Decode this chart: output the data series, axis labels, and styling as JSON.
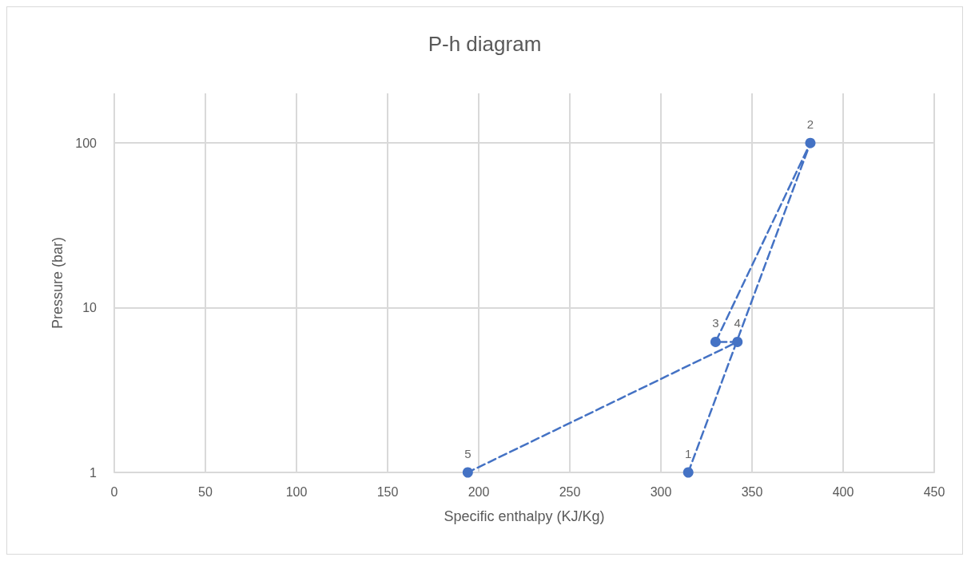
{
  "chart_data": {
    "type": "line",
    "title": "P-h diagram",
    "xlabel": "Specific enthalpy (KJ/Kg)",
    "ylabel": "Pressure (bar)",
    "x": [
      315,
      382,
      330,
      342,
      194
    ],
    "series": [
      {
        "color": "#4472c4",
        "values": [
          1,
          100,
          6.2,
          6.2,
          1
        ]
      }
    ],
    "annotations": [
      {
        "text": "1",
        "x": 315,
        "y": 1
      },
      {
        "text": "2",
        "x": 382,
        "y": 100
      },
      {
        "text": "3",
        "x": 330,
        "y": 6.2
      },
      {
        "text": "4",
        "x": 342,
        "y": 6.2
      },
      {
        "text": "5",
        "x": 194,
        "y": 1
      }
    ],
    "xlim": [
      0,
      450
    ],
    "xticks": [
      0,
      50,
      100,
      150,
      200,
      250,
      300,
      350,
      400,
      450
    ],
    "ylim": [
      1,
      200
    ],
    "yticks": [
      1,
      10,
      100
    ],
    "log": "y",
    "grid": true,
    "marker": "circle",
    "line_style": "dashed"
  }
}
